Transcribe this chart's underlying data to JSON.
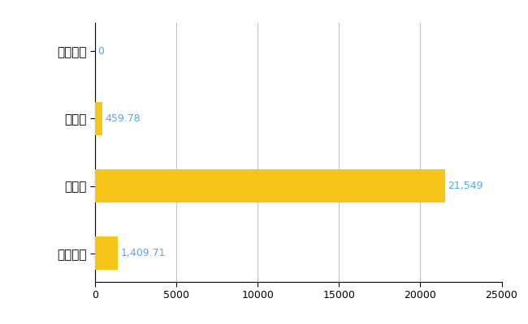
{
  "categories": [
    "赤井川村",
    "県平均",
    "県最大",
    "全国平均"
  ],
  "values": [
    0,
    459.78,
    21549,
    1409.71
  ],
  "bar_color": "#F5C518",
  "value_labels": [
    "0",
    "459.78",
    "21,549",
    "1,409.71"
  ],
  "xlim": [
    0,
    25000
  ],
  "xticks": [
    0,
    5000,
    10000,
    15000,
    20000,
    25000
  ],
  "xtick_labels": [
    "0",
    "5000",
    "10000",
    "15000",
    "20000",
    "25000"
  ],
  "background_color": "#ffffff",
  "grid_color": "#c0c0c0",
  "label_color": "#4da6ff",
  "bar_height": 0.5,
  "ytick_fontsize": 11,
  "xtick_fontsize": 9,
  "value_label_fontsize": 9
}
